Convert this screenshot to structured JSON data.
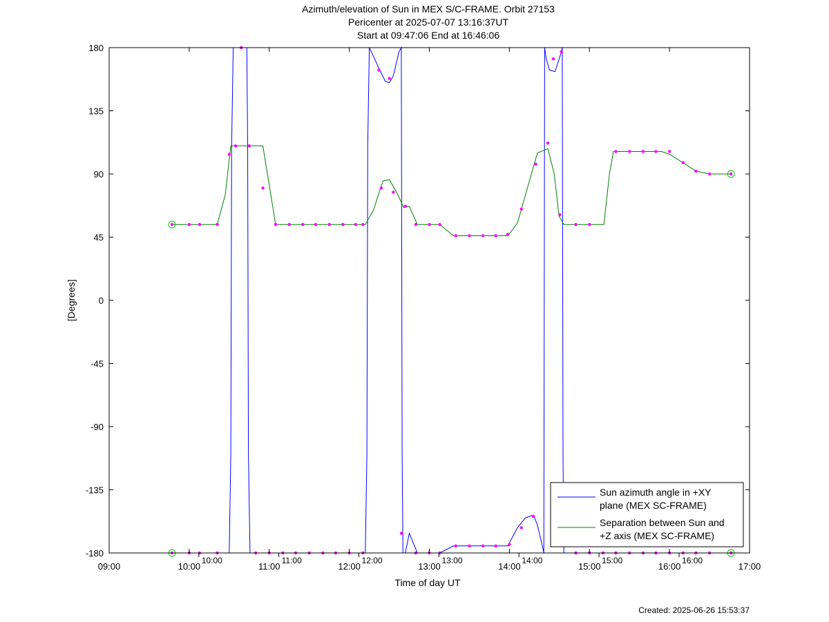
{
  "titles": {
    "line1": "Azimuth/elevation of Sun in MEX S/C-FRAME.  Orbit 27153",
    "line2": "Pericenter at 2025-07-07 13:16:37UT",
    "line3": "Start at 09:47:06 End at 16:46:06"
  },
  "footer": {
    "created": "Created: 2025-06-26 15:53:37"
  },
  "colors": {
    "azimuth": "#0000ff",
    "separation": "#008000",
    "markers": "#ff00ff",
    "circle_markers": "#00cc00",
    "axes": "#000000"
  },
  "chart_data": {
    "type": "line",
    "xlabel": "Time of day UT",
    "ylabel": "[Degrees]",
    "xlim_hours": [
      9,
      17
    ],
    "ylim": [
      -180,
      180
    ],
    "x_ticks": [
      "09:00",
      "10:00",
      "11:00",
      "12:00",
      "13:00",
      "14:00",
      "15:00",
      "16:00",
      "17:00"
    ],
    "y_ticks": [
      180,
      135,
      90,
      45,
      0,
      -45,
      -90,
      -135,
      -180
    ],
    "orbit_labels": [
      "10:00",
      "11:00",
      "12:00",
      "13:00",
      "14:00",
      "15:00",
      "16:00"
    ],
    "legend_position": "bottom-right",
    "series": [
      {
        "name": "Sun azimuth angle in +XY plane (MEX SC-FRAME)",
        "legend_lines": [
          "Sun azimuth angle in +XY",
          "plane (MEX SC-FRAME)"
        ],
        "x_hours": [
          9.785,
          10.5,
          10.52,
          10.53,
          10.55,
          10.72,
          10.73,
          10.74,
          10.76,
          12.2,
          12.22,
          12.23,
          12.25,
          12.3,
          12.38,
          12.45,
          12.5,
          12.55,
          12.62,
          12.65,
          12.66,
          12.67,
          12.7,
          12.75,
          12.85,
          13.0,
          13.13,
          13.3,
          13.5,
          13.7,
          13.98,
          14.1,
          14.2,
          14.3,
          14.35,
          14.42,
          14.43,
          14.44,
          14.46,
          14.5,
          14.57,
          14.65,
          14.66,
          14.67,
          14.68,
          14.7,
          15.0,
          15.5,
          16.0,
          16.768
        ],
        "values": [
          -180,
          -180,
          -110,
          110,
          180,
          180,
          110,
          -110,
          -180,
          -180,
          -110,
          110,
          180,
          174,
          164,
          156,
          155,
          160,
          177,
          180,
          -110,
          -180,
          -180,
          -166,
          -180,
          -180,
          -180,
          -175,
          -175,
          -175,
          -175,
          -162,
          -155,
          -153,
          -160,
          -177,
          -180,
          180,
          172,
          164,
          163,
          177,
          180,
          -110,
          -180,
          -180,
          -180,
          -180,
          -180,
          -180
        ]
      },
      {
        "name": "Separation between Sun and +Z axis (MEX SC-FRAME)",
        "legend_lines": [
          "Separation between Sun and",
          "+Z axis (MEX SC-FRAME)"
        ],
        "x_hours": [
          9.785,
          9.98,
          10.13,
          10.35,
          10.45,
          10.52,
          10.75,
          10.92,
          11.08,
          11.5,
          12.0,
          12.2,
          12.3,
          12.42,
          12.5,
          12.6,
          12.68,
          12.75,
          12.85,
          13.0,
          13.13,
          13.3,
          13.5,
          13.7,
          13.98,
          14.1,
          14.25,
          14.35,
          14.48,
          14.56,
          14.62,
          14.68,
          15.0,
          15.18,
          15.25,
          15.3,
          15.5,
          15.9,
          16.0,
          16.17,
          16.33,
          16.5,
          16.768
        ],
        "values": [
          54,
          54,
          54,
          54,
          75,
          110,
          110,
          110,
          54,
          54,
          54,
          54,
          64,
          85,
          86,
          76,
          66,
          67,
          54,
          54,
          54,
          46,
          46,
          46,
          46,
          55,
          85,
          105,
          108,
          90,
          60,
          54,
          54,
          54,
          90,
          106,
          106,
          106,
          104,
          98,
          92,
          90,
          90
        ]
      }
    ],
    "azimuth_markers": {
      "x_hours": [
        9.785,
        10.0,
        10.13,
        10.35,
        10.65,
        10.83,
        11.0,
        11.17,
        11.33,
        11.5,
        11.67,
        11.83,
        12.0,
        12.17,
        12.37,
        12.5,
        12.65,
        12.83,
        13.0,
        13.13,
        13.33,
        13.5,
        13.67,
        13.83,
        14.0,
        14.15,
        14.3,
        14.55,
        14.65,
        14.83,
        15.0,
        15.17,
        15.33,
        15.5,
        15.67,
        15.83,
        16.0,
        16.17,
        16.33,
        16.5,
        16.768
      ],
      "values": [
        -180,
        -180,
        -180,
        -180,
        180,
        -180,
        -180,
        -180,
        -180,
        -180,
        -180,
        -180,
        -180,
        -180,
        164,
        158,
        -166,
        -180,
        -180,
        -180,
        -175,
        -175,
        -175,
        -175,
        -174,
        -162,
        -154,
        172,
        177,
        -180,
        -180,
        -180,
        -180,
        -180,
        -180,
        -180,
        -180,
        -180,
        -180,
        -180,
        -180
      ]
    },
    "separation_markers": {
      "x_hours": [
        9.785,
        10.0,
        10.13,
        10.35,
        10.5,
        10.58,
        10.75,
        10.92,
        11.08,
        11.25,
        11.42,
        11.58,
        11.75,
        11.92,
        12.08,
        12.17,
        12.4,
        12.55,
        12.7,
        12.83,
        13.0,
        13.13,
        13.33,
        13.5,
        13.67,
        13.83,
        13.98,
        14.15,
        14.33,
        14.48,
        14.63,
        14.83,
        15.0,
        15.33,
        15.5,
        15.67,
        15.83,
        16.0,
        16.17,
        16.33,
        16.5,
        16.768
      ],
      "values": [
        54,
        54,
        54,
        54,
        104,
        110,
        110,
        80,
        54,
        54,
        54,
        54,
        54,
        54,
        54,
        54,
        80,
        77,
        67,
        54,
        54,
        54,
        46,
        46,
        46,
        46,
        47,
        65,
        97,
        112,
        61,
        54,
        54,
        106,
        106,
        106,
        106,
        106,
        98,
        92,
        90,
        90
      ]
    }
  }
}
